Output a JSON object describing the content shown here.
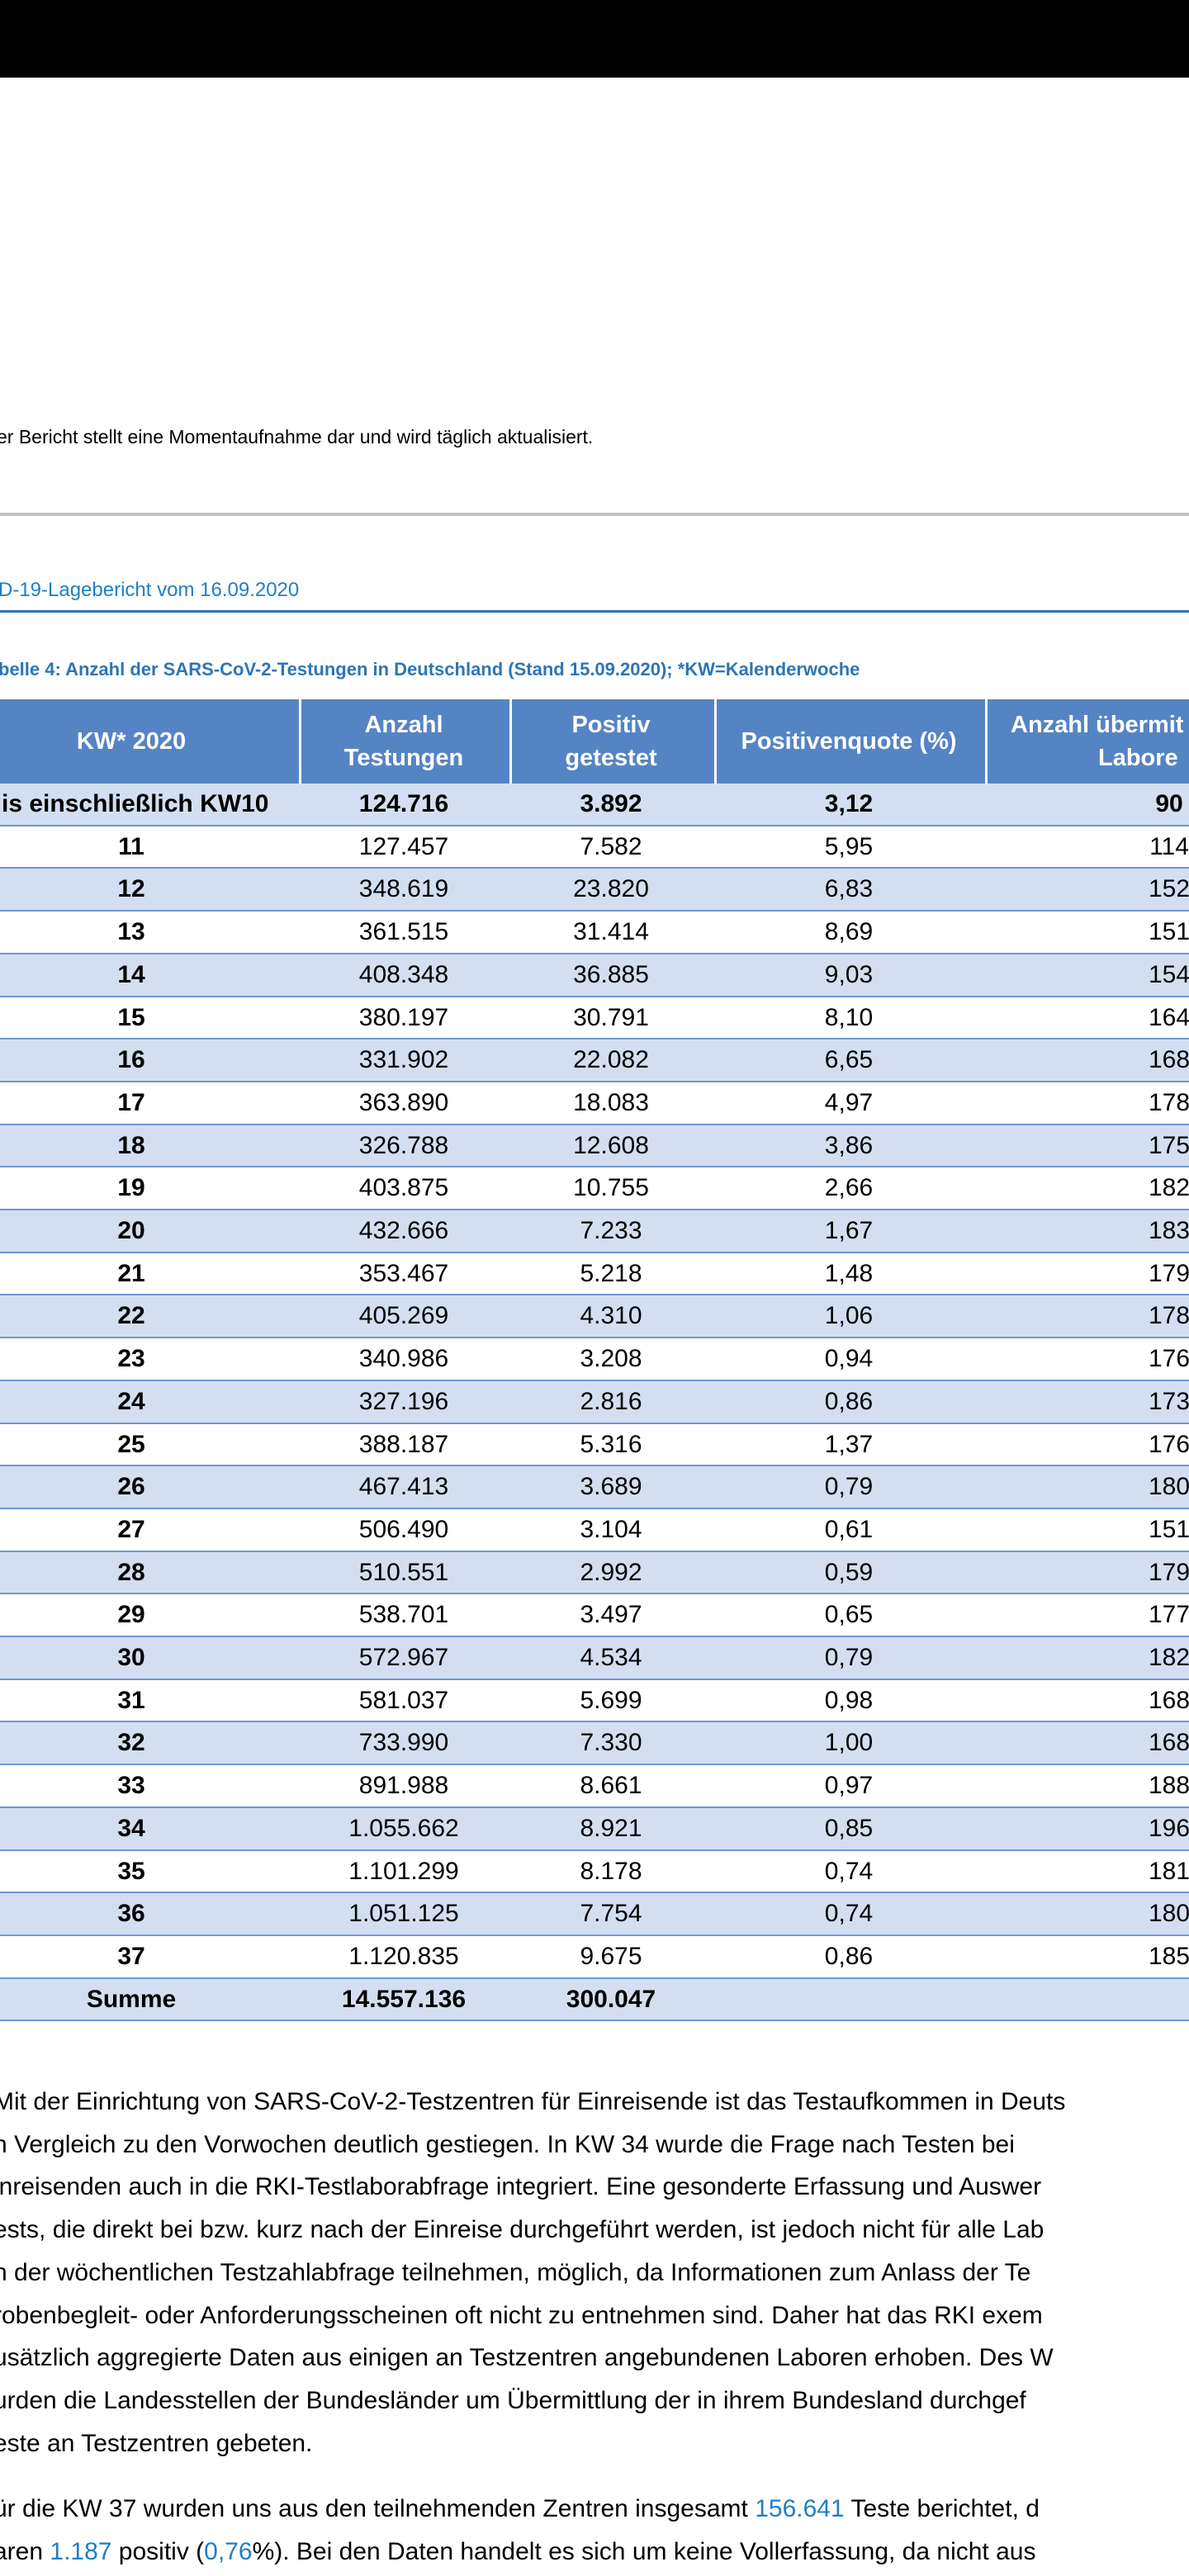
{
  "header_note": "er Bericht stellt eine Momentaufnahme dar und wird täglich aktualisiert.",
  "report_title": "D-19-Lagebericht vom 16.09.2020",
  "table": {
    "caption": "belle 4: Anzahl der SARS-CoV-2-Testungen in Deutschland (Stand 15.09.2020); *KW=Kalenderwoche",
    "columns": [
      [
        "KW* 2020"
      ],
      [
        "Anzahl",
        "Testungen"
      ],
      [
        "Positiv",
        "getestet"
      ],
      [
        "Positivenquote (%)"
      ],
      [
        "Anzahl übermit",
        "Labore"
      ]
    ],
    "rows": [
      [
        "is einschließlich KW10",
        "124.716",
        "3.892",
        "3,12",
        "90"
      ],
      [
        "11",
        "127.457",
        "7.582",
        "5,95",
        "114"
      ],
      [
        "12",
        "348.619",
        "23.820",
        "6,83",
        "152"
      ],
      [
        "13",
        "361.515",
        "31.414",
        "8,69",
        "151"
      ],
      [
        "14",
        "408.348",
        "36.885",
        "9,03",
        "154"
      ],
      [
        "15",
        "380.197",
        "30.791",
        "8,10",
        "164"
      ],
      [
        "16",
        "331.902",
        "22.082",
        "6,65",
        "168"
      ],
      [
        "17",
        "363.890",
        "18.083",
        "4,97",
        "178"
      ],
      [
        "18",
        "326.788",
        "12.608",
        "3,86",
        "175"
      ],
      [
        "19",
        "403.875",
        "10.755",
        "2,66",
        "182"
      ],
      [
        "20",
        "432.666",
        "7.233",
        "1,67",
        "183"
      ],
      [
        "21",
        "353.467",
        "5.218",
        "1,48",
        "179"
      ],
      [
        "22",
        "405.269",
        "4.310",
        "1,06",
        "178"
      ],
      [
        "23",
        "340.986",
        "3.208",
        "0,94",
        "176"
      ],
      [
        "24",
        "327.196",
        "2.816",
        "0,86",
        "173"
      ],
      [
        "25",
        "388.187",
        "5.316",
        "1,37",
        "176"
      ],
      [
        "26",
        "467.413",
        "3.689",
        "0,79",
        "180"
      ],
      [
        "27",
        "506.490",
        "3.104",
        "0,61",
        "151"
      ],
      [
        "28",
        "510.551",
        "2.992",
        "0,59",
        "179"
      ],
      [
        "29",
        "538.701",
        "3.497",
        "0,65",
        "177"
      ],
      [
        "30",
        "572.967",
        "4.534",
        "0,79",
        "182"
      ],
      [
        "31",
        "581.037",
        "5.699",
        "0,98",
        "168"
      ],
      [
        "32",
        "733.990",
        "7.330",
        "1,00",
        "168"
      ],
      [
        "33",
        "891.988",
        "8.661",
        "0,97",
        "188"
      ],
      [
        "34",
        "1.055.662",
        "8.921",
        "0,85",
        "196"
      ],
      [
        "35",
        "1.101.299",
        "8.178",
        "0,74",
        "181"
      ],
      [
        "36",
        "1.051.125",
        "7.754",
        "0,74",
        "180"
      ],
      [
        "37",
        "1.120.835",
        "9.675",
        "0,86",
        "185"
      ]
    ],
    "total": [
      "Summe",
      "14.557.136",
      "300.047"
    ]
  },
  "paragraphs": [
    [
      [
        "Mit der Einrichtung von SARS-CoV-2-Testzentren für Einreisende ist das Testaufkommen in Deuts"
      ],
      [
        "n Vergleich zu den Vorwochen deutlich gestiegen. In KW 34 wurde die Frage nach Testen bei"
      ],
      [
        "inreisenden auch in die RKI-Testlaborabfrage integriert. Eine gesonderte Erfassung und Auswer"
      ],
      [
        "ests, die direkt bei bzw. kurz nach der Einreise durchgeführt werden, ist jedoch nicht für alle Lab"
      ],
      [
        "n der wöchentlichen Testzahlabfrage teilnehmen, möglich, da Informationen zum Anlass der Te"
      ],
      [
        "robenbegleit- oder Anforderungsscheinen oft nicht zu entnehmen sind. Daher hat das RKI exem"
      ],
      [
        "usätzlich aggregierte Daten aus einigen an Testzentren angebundenen Laboren erhoben. Des W"
      ],
      [
        "urden die Landesstellen der Bundesländer um Übermittlung der in ihrem Bundesland durchgef"
      ],
      [
        "este an Testzentren gebeten."
      ]
    ],
    [
      [
        "ür die KW 37 wurden uns aus den teilnehmenden Zentren insgesamt ",
        "156.641",
        " Teste berichtet, d"
      ],
      [
        "aren ",
        "1.187",
        " positiv (",
        "0,76",
        "%). Bei den Daten handelt es sich um keine Vollerfassung, da nicht aus"
      ]
    ]
  ]
}
